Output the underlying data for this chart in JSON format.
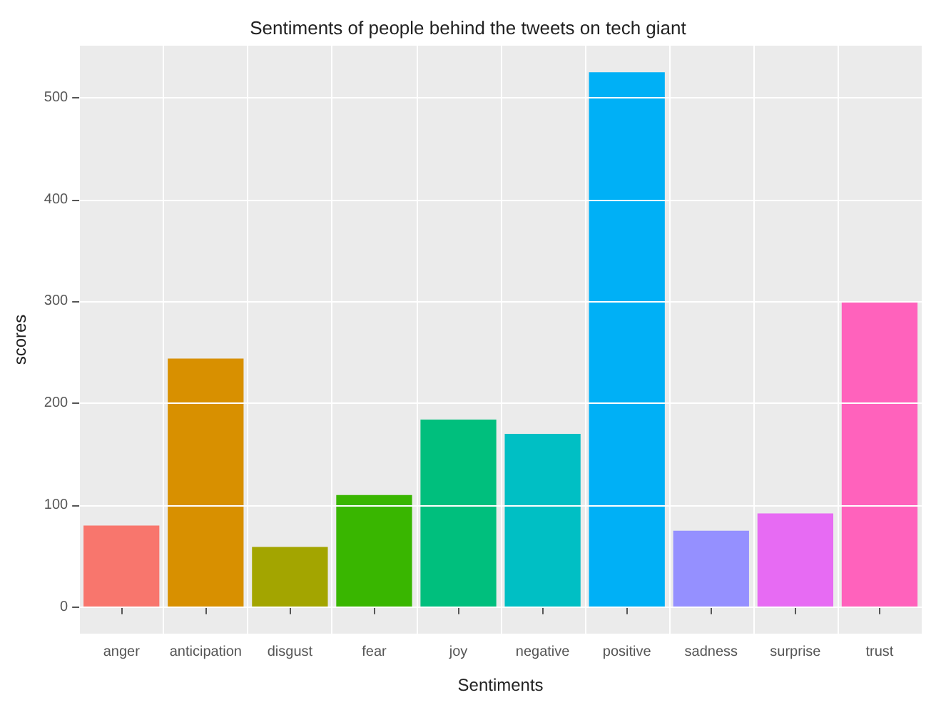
{
  "chart_data": {
    "type": "bar",
    "title": "Sentiments of people behind the tweets on tech giant",
    "xlabel": "Sentiments",
    "ylabel": "scores",
    "categories": [
      "anger",
      "anticipation",
      "disgust",
      "fear",
      "joy",
      "negative",
      "positive",
      "sadness",
      "surprise",
      "trust"
    ],
    "values": [
      80,
      244,
      59,
      110,
      184,
      170,
      525,
      75,
      92,
      299
    ],
    "colors": [
      "#f8766d",
      "#d89000",
      "#a3a500",
      "#39b600",
      "#00bf7d",
      "#00bfc4",
      "#00b0f6",
      "#9590ff",
      "#e76bf3",
      "#ff62bc"
    ],
    "ylim": [
      -26,
      551
    ],
    "yticks": [
      0,
      100,
      200,
      300,
      400,
      500
    ],
    "grid": true
  }
}
